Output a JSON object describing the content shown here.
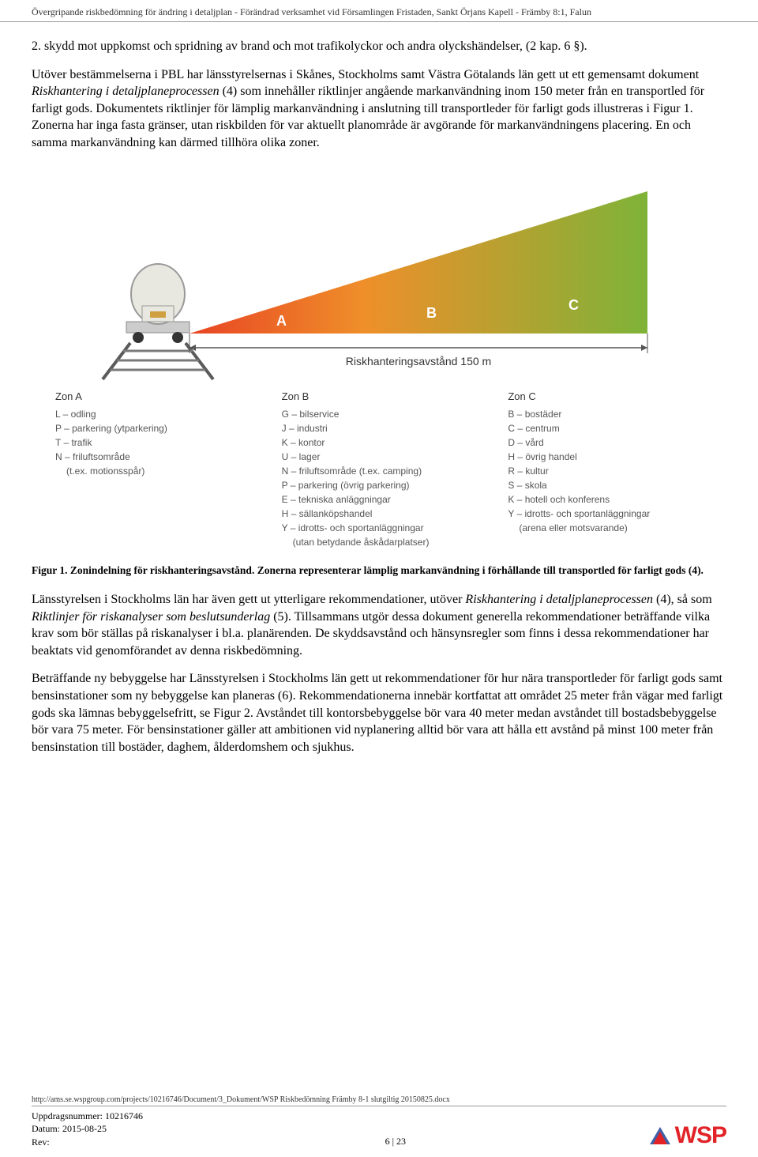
{
  "header": {
    "title": "Övergripande riskbedömning för ändring i detaljplan - Förändrad verksamhet vid Församlingen Fristaden, Sankt Örjans Kapell - Främby 8:1, Falun"
  },
  "para1": "2. skydd mot uppkomst och spridning av brand och mot trafikolyckor och andra olyckshändelser, (2 kap. 6 §).",
  "para2_a": "Utöver bestämmelserna i PBL har länsstyrelsernas i Skånes, Stockholms samt Västra Götalands län gett ut ett gemensamt dokument ",
  "para2_i": "Riskhantering i detaljplaneprocessen",
  "para2_b": " (4) som innehåller riktlinjer angående markanvändning inom 150 meter från en transportled för farligt gods. Dokumentets riktlinjer för lämplig markanvändning i anslutning till transportleder för farligt gods illustreras i Figur 1. Zonerna har inga fasta gränser, utan riskbilden för var aktuellt planområde är avgörande för markanvändningens placering. En och samma markanvändning kan därmed tillhöra olika zoner.",
  "figure": {
    "zone_labels": [
      "A",
      "B",
      "C"
    ],
    "zone_label_color": "#ffffff",
    "risk_label": "Riskhanteringsavstånd 150 m",
    "triangle_gradient": {
      "left": "#e84423",
      "mid": "#f09229",
      "right": "#85b芝35"
    },
    "colors": {
      "left": "#e84423",
      "mid": "#ef8f2a",
      "right": "#7eb338",
      "track": "#5a5a5a",
      "sleeper": "#7a7a7a",
      "train_body": "#e8e8e0",
      "train_window": "#d0a040",
      "train_platform": "#cccccc",
      "train_wheel": "#333333"
    }
  },
  "zones": {
    "a": {
      "title": "Zon A",
      "lines": [
        "L – odling",
        "P – parkering (ytparkering)",
        "T – trafik",
        "N – friluftsområde",
        "(t.ex. motionsspår)"
      ],
      "indent": [
        4
      ]
    },
    "b": {
      "title": "Zon B",
      "lines": [
        "G – bilservice",
        "J – industri",
        "K – kontor",
        "U – lager",
        "N – friluftsområde (t.ex. camping)",
        "P – parkering (övrig parkering)",
        "E – tekniska anläggningar",
        "H – sällanköpshandel",
        "Y – idrotts- och sportanläggningar",
        "(utan betydande åskådarplatser)"
      ],
      "indent": [
        9
      ]
    },
    "c": {
      "title": "Zon C",
      "lines": [
        "B – bostäder",
        "C – centrum",
        "D – vård",
        "H – övrig handel",
        "R – kultur",
        "S – skola",
        "K – hotell och konferens",
        "Y – idrotts- och sportanläggningar",
        "(arena eller motsvarande)"
      ],
      "indent": [
        8
      ]
    }
  },
  "caption_b": "Figur 1. Zonindelning för riskhanteringsavstånd. Zonerna representerar lämplig markanvändning i förhållande till transportled för farligt gods (4).",
  "para3_a": "Länsstyrelsen i Stockholms län har även gett ut ytterligare rekommendationer, utöver ",
  "para3_i1": "Riskhantering i detaljplaneprocessen",
  "para3_b": " (4), så som ",
  "para3_i2": "Riktlinjer för riskanalyser som beslutsunderlag",
  "para3_c": " (5). Tillsammans utgör dessa dokument generella rekommendationer beträffande vilka krav som bör ställas på riskanalyser i bl.a. planärenden. De skyddsavstånd och hänsynsregler som finns i dessa rekommendationer har beaktats vid genomförandet av denna riskbedömning.",
  "para4": "Beträffande ny bebyggelse har Länsstyrelsen i Stockholms län gett ut rekommendationer för hur nära transportleder för farligt gods samt bensinstationer som ny bebyggelse kan planeras (6). Rekommendationerna innebär kortfattat att området 25 meter från vägar med farligt gods ska lämnas bebyggelsefritt, se Figur 2. Avståndet till kontorsbebyggelse bör vara 40 meter medan avståndet till bostadsbebyggelse bör vara 75 meter. För bensinstationer gäller att ambitionen vid nyplanering alltid bör vara att hålla ett avstånd på minst 100 meter från bensinstation till bostäder, daghem, ålderdomshem och sjukhus.",
  "footer": {
    "url": "http://ams.se.wspgroup.com/projects/10216746/Document/3_Dokument/WSP Riskbedömning Främby 8-1 slutgiltig 20150825.docx",
    "uppdrag": "Uppdragsnummer: 10216746",
    "datum": "Datum: 2015-08-25",
    "rev": "Rev:",
    "page": "6 | 23",
    "logo_text": "WSP"
  }
}
